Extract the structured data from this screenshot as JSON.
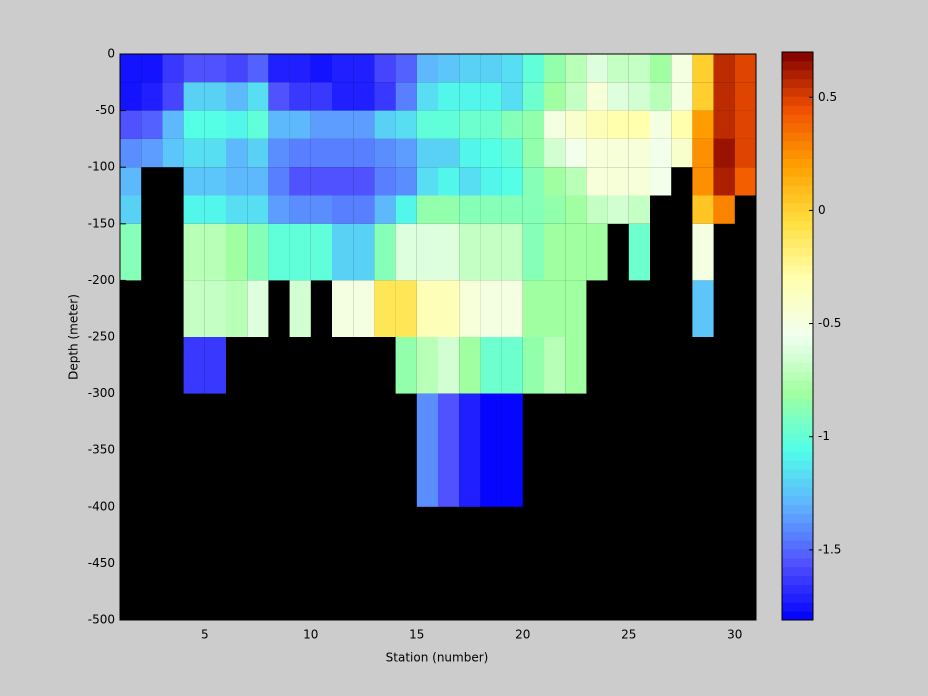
{
  "chart_data": {
    "type": "heatmap",
    "xlabel": "Station (number)",
    "ylabel": "Depth (meter)",
    "x_edges": [
      1,
      2,
      3,
      4,
      5,
      6,
      7,
      8,
      9,
      10,
      11,
      12,
      13,
      14,
      15,
      16,
      17,
      18,
      19,
      20,
      21,
      22,
      23,
      24,
      25,
      26,
      27,
      28,
      29,
      30,
      31
    ],
    "y_edges": [
      0,
      -25,
      -50,
      -75,
      -100,
      -125,
      -150,
      -200,
      -250,
      -300,
      -400
    ],
    "values": [
      [
        -1.75,
        -1.75,
        -1.65,
        -1.55,
        -1.55,
        -1.6,
        -1.5,
        -1.7,
        -1.7,
        -1.75,
        -1.7,
        -1.7,
        -1.6,
        -1.5,
        -1.3,
        -1.25,
        -1.2,
        -1.2,
        -1.15,
        -1.0,
        -0.85,
        -0.75,
        -0.6,
        -0.7,
        -0.7,
        -0.8,
        -0.5,
        0.0,
        0.55,
        0.5
      ],
      [
        -1.75,
        -1.7,
        -1.6,
        -1.2,
        -1.2,
        -1.3,
        -1.15,
        -1.55,
        -1.65,
        -1.65,
        -1.7,
        -1.7,
        -1.65,
        -1.45,
        -1.15,
        -1.1,
        -1.1,
        -1.1,
        -1.15,
        -0.95,
        -0.8,
        -0.7,
        -0.45,
        -0.6,
        -0.65,
        -0.75,
        -0.5,
        0.0,
        0.55,
        0.5
      ],
      [
        -1.55,
        -1.5,
        -1.3,
        -1.05,
        -1.05,
        -1.1,
        -1.0,
        -1.3,
        -1.3,
        -1.35,
        -1.35,
        -1.35,
        -1.2,
        -1.15,
        -1.0,
        -1.0,
        -0.95,
        -0.95,
        -0.9,
        -0.85,
        -0.5,
        -0.4,
        -0.35,
        -0.3,
        -0.3,
        -0.5,
        -0.3,
        0.2,
        0.55,
        0.5
      ],
      [
        -1.4,
        -1.35,
        -1.25,
        -1.15,
        -1.15,
        -1.3,
        -1.2,
        -1.4,
        -1.45,
        -1.45,
        -1.45,
        -1.45,
        -1.4,
        -1.35,
        -1.2,
        -1.2,
        -1.1,
        -1.05,
        -1.0,
        -0.85,
        -0.65,
        -0.55,
        -0.45,
        -0.45,
        -0.45,
        -0.55,
        -0.4,
        0.25,
        0.65,
        0.5
      ],
      [
        -1.3,
        null,
        null,
        -1.25,
        -1.25,
        -1.3,
        -1.3,
        -1.45,
        -1.55,
        -1.55,
        -1.55,
        -1.55,
        -1.45,
        -1.4,
        -1.15,
        -1.1,
        -1.15,
        -1.1,
        -1.05,
        -0.9,
        -0.8,
        -0.75,
        -0.45,
        -0.45,
        -0.45,
        -0.55,
        null,
        0.25,
        0.6,
        0.4
      ],
      [
        -1.2,
        null,
        null,
        -1.1,
        -1.1,
        -1.15,
        -1.15,
        -1.35,
        -1.4,
        -1.4,
        -1.45,
        -1.45,
        -1.3,
        -1.1,
        -0.85,
        -0.85,
        -0.9,
        -0.9,
        -0.9,
        -0.9,
        -0.85,
        -0.8,
        -0.7,
        -0.65,
        -0.7,
        null,
        null,
        0.05,
        0.3,
        null
      ],
      [
        -0.9,
        null,
        null,
        -0.75,
        -0.75,
        -0.8,
        -0.9,
        -1.0,
        -1.0,
        -1.0,
        -1.2,
        -1.2,
        -0.9,
        -0.6,
        -0.6,
        -0.6,
        -0.7,
        -0.7,
        -0.7,
        -0.9,
        -0.8,
        -0.8,
        -0.8,
        null,
        -0.95,
        null,
        null,
        -0.5,
        null,
        null
      ],
      [
        null,
        null,
        null,
        -0.7,
        -0.7,
        -0.75,
        -0.6,
        null,
        -0.65,
        null,
        -0.5,
        -0.5,
        -0.1,
        -0.1,
        -0.35,
        -0.35,
        -0.45,
        -0.5,
        -0.5,
        -0.8,
        -0.8,
        -0.8,
        null,
        null,
        null,
        null,
        null,
        -1.25,
        null,
        null
      ],
      [
        null,
        null,
        null,
        -1.65,
        -1.65,
        null,
        null,
        null,
        null,
        null,
        null,
        null,
        null,
        -0.85,
        -0.75,
        -0.65,
        -0.8,
        -0.95,
        -0.95,
        -0.85,
        -0.75,
        -0.8,
        null,
        null,
        null,
        null,
        null,
        null,
        null,
        null
      ],
      [
        null,
        null,
        null,
        null,
        null,
        null,
        null,
        null,
        null,
        null,
        null,
        null,
        null,
        null,
        -1.4,
        -1.55,
        -1.7,
        -1.8,
        -1.8,
        null,
        null,
        null,
        null,
        null,
        null,
        null,
        null,
        null,
        null,
        null
      ]
    ],
    "xlim": [
      1,
      31
    ],
    "ylim": [
      -500,
      0
    ],
    "xticks": [
      5,
      10,
      15,
      20,
      25,
      30
    ],
    "yticks": [
      0,
      -50,
      -100,
      -150,
      -200,
      -250,
      -300,
      -350,
      -400,
      -450,
      -500
    ],
    "clim": [
      -1.81,
      0.7
    ],
    "cticks": [
      0.5,
      0,
      -0.5,
      -1,
      -1.5
    ],
    "colormap": [
      "#0000ff",
      "#5050ff",
      "#60b0ff",
      "#50ffe8",
      "#a0ffa0",
      "#f0fff0",
      "#ffffb0",
      "#ffe040",
      "#ffa000",
      "#f05000",
      "#800000"
    ],
    "levels": 64,
    "background": "#000000"
  }
}
